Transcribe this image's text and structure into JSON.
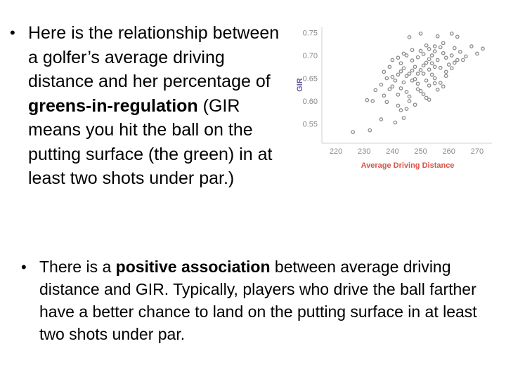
{
  "bullet1": {
    "segments": [
      {
        "text": "Here is the relationship between a golfer’s average driving distance and her percentage of ",
        "bold": false
      },
      {
        "text": "greens-in-regulation",
        "bold": true
      },
      {
        "text": " (GIR means you hit the ball on the putting surface (the green) in at least two shots under par.)",
        "bold": false
      }
    ]
  },
  "bullet2": {
    "segments": [
      {
        "text": "There is a ",
        "bold": false
      },
      {
        "text": "positive association",
        "bold": true
      },
      {
        "text": " between average driving distance and GIR.  Typically, players who drive the ball farther have a better chance to land on the putting surface in at least two shots under par.",
        "bold": false
      }
    ]
  },
  "bullet_glyph": "•",
  "chart_data": {
    "type": "scatter",
    "title": "",
    "xlabel": "Average Driving Distance",
    "ylabel": "GIR",
    "xlim": [
      218,
      274
    ],
    "ylim": [
      0.52,
      0.76
    ],
    "xticks": [
      220,
      230,
      240,
      250,
      260,
      270
    ],
    "yticks": [
      0.55,
      0.6,
      0.65,
      0.7,
      0.75
    ],
    "ytick_labels": [
      "0.55",
      "0.60",
      "0.65",
      "0.70",
      "0.75"
    ],
    "grid": false,
    "colors": {
      "points": "#8c8c8c",
      "xlabel": "#d8534a",
      "ylabel": "#6b5aa6",
      "ticks": "#888888"
    },
    "points": [
      [
        226,
        0.532
      ],
      [
        232,
        0.536
      ],
      [
        236,
        0.56
      ],
      [
        241,
        0.553
      ],
      [
        244,
        0.563
      ],
      [
        233,
        0.6
      ],
      [
        231,
        0.602
      ],
      [
        237,
        0.612
      ],
      [
        239,
        0.626
      ],
      [
        243,
        0.58
      ],
      [
        245,
        0.583
      ],
      [
        236,
        0.636
      ],
      [
        240,
        0.632
      ],
      [
        242,
        0.614
      ],
      [
        243,
        0.628
      ],
      [
        244,
        0.641
      ],
      [
        245,
        0.62
      ],
      [
        246,
        0.6
      ],
      [
        247,
        0.645
      ],
      [
        238,
        0.65
      ],
      [
        240,
        0.653
      ],
      [
        242,
        0.658
      ],
      [
        243,
        0.665
      ],
      [
        244,
        0.672
      ],
      [
        245,
        0.655
      ],
      [
        246,
        0.66
      ],
      [
        247,
        0.667
      ],
      [
        248,
        0.675
      ],
      [
        240,
        0.69
      ],
      [
        242,
        0.695
      ],
      [
        245,
        0.7
      ],
      [
        247,
        0.689
      ],
      [
        248,
        0.648
      ],
      [
        249,
        0.638
      ],
      [
        250,
        0.622
      ],
      [
        251,
        0.615
      ],
      [
        252,
        0.645
      ],
      [
        253,
        0.634
      ],
      [
        248,
        0.592
      ],
      [
        253,
        0.603
      ],
      [
        249,
        0.66
      ],
      [
        250,
        0.668
      ],
      [
        251,
        0.678
      ],
      [
        252,
        0.684
      ],
      [
        253,
        0.669
      ],
      [
        254,
        0.658
      ],
      [
        255,
        0.675
      ],
      [
        256,
        0.69
      ],
      [
        249,
        0.696
      ],
      [
        250,
        0.71
      ],
      [
        251,
        0.703
      ],
      [
        252,
        0.722
      ],
      [
        253,
        0.714
      ],
      [
        254,
        0.7
      ],
      [
        255,
        0.709
      ],
      [
        257,
        0.718
      ],
      [
        258,
        0.705
      ],
      [
        246,
        0.74
      ],
      [
        250,
        0.748
      ],
      [
        256,
        0.742
      ],
      [
        261,
        0.748
      ],
      [
        263,
        0.741
      ],
      [
        259,
        0.695
      ],
      [
        260,
        0.68
      ],
      [
        261,
        0.7
      ],
      [
        262,
        0.716
      ],
      [
        263,
        0.69
      ],
      [
        264,
        0.708
      ],
      [
        266,
        0.698
      ],
      [
        268,
        0.72
      ],
      [
        270,
        0.704
      ],
      [
        272,
        0.715
      ],
      [
        255,
        0.65
      ],
      [
        257,
        0.64
      ],
      [
        259,
        0.655
      ],
      [
        256,
        0.625
      ],
      [
        258,
        0.632
      ],
      [
        246,
        0.61
      ],
      [
        238,
        0.598
      ],
      [
        241,
        0.645
      ],
      [
        237,
        0.664
      ],
      [
        234,
        0.624
      ],
      [
        239,
        0.675
      ],
      [
        243,
        0.683
      ],
      [
        247,
        0.712
      ],
      [
        253,
        0.692
      ],
      [
        254,
        0.683
      ],
      [
        257,
        0.673
      ],
      [
        259,
        0.664
      ],
      [
        261,
        0.672
      ],
      [
        262,
        0.684
      ],
      [
        265,
        0.69
      ],
      [
        251,
        0.66
      ],
      [
        255,
        0.72
      ],
      [
        258,
        0.727
      ],
      [
        244,
        0.704
      ],
      [
        249,
        0.626
      ],
      [
        252,
        0.607
      ],
      [
        255,
        0.639
      ],
      [
        242,
        0.59
      ]
    ]
  }
}
